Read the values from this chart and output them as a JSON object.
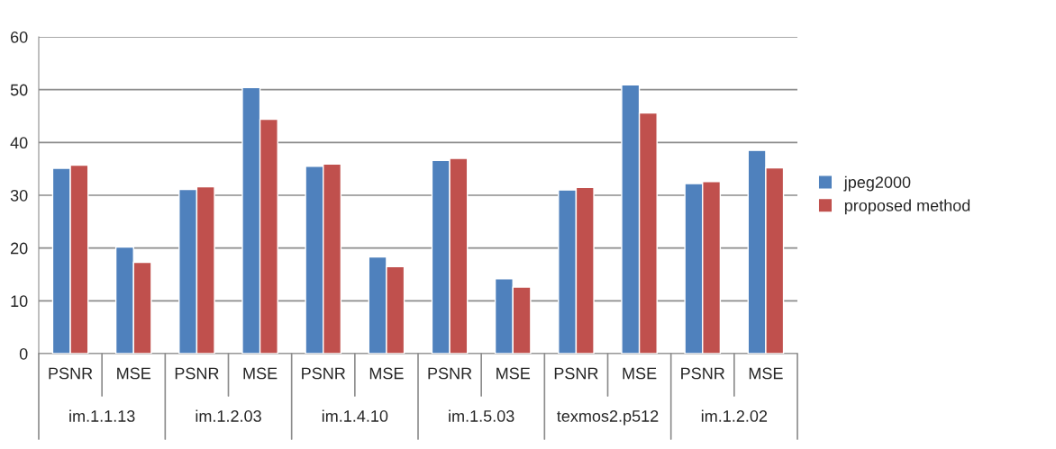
{
  "chart_data": {
    "type": "bar",
    "categories": [
      "PSNR",
      "MSE",
      "PSNR",
      "MSE",
      "PSNR",
      "MSE",
      "PSNR",
      "MSE",
      "PSNR",
      "MSE",
      "PSNR",
      "MSE"
    ],
    "series": [
      {
        "name": "jpeg2000",
        "color": "#4f81bd",
        "values": [
          35.1,
          20.2,
          31.1,
          50.4,
          35.5,
          18.3,
          36.6,
          14.2,
          31.0,
          50.9,
          32.2,
          38.5
        ]
      },
      {
        "name": "proposed method",
        "color": "#c0504d",
        "values": [
          35.7,
          17.3,
          31.6,
          44.4,
          35.9,
          16.5,
          37.0,
          12.6,
          31.5,
          45.6,
          32.6,
          35.2
        ]
      }
    ],
    "annotations": [
      "im.1.1.13",
      "im.1.2.03",
      "im.1.4.10",
      "im.1.5.03",
      "texmos2.p512",
      "im.1.2.02"
    ],
    "ylim": [
      0,
      60
    ],
    "yticks": [
      0,
      10,
      20,
      30,
      40,
      50,
      60
    ],
    "grid": "y",
    "legend": "right"
  }
}
